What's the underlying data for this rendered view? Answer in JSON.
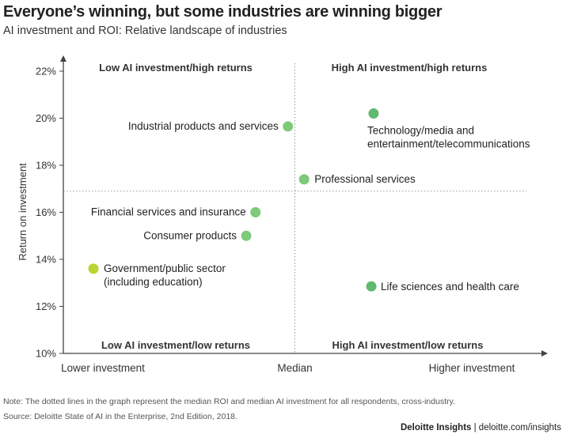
{
  "header": {
    "title": "Everyone’s winning, but some industries are winning bigger",
    "subtitle": "AI investment and ROI: Relative landscape of industries"
  },
  "chart_data": {
    "type": "scatter",
    "ylabel": "Return on investment",
    "ylim": [
      10,
      22
    ],
    "y_ticks": [
      "10%",
      "12%",
      "14%",
      "16%",
      "18%",
      "20%",
      "22%"
    ],
    "x_axis_labels": {
      "low": "Lower investment",
      "mid": "Median",
      "high": "Higher investment"
    },
    "xlim": [
      0,
      100
    ],
    "median_x": 50,
    "median_y": 16.9,
    "quadrants": {
      "top_left": "Low AI investment/high returns",
      "top_right": "High AI investment/high returns",
      "bottom_left": "Low AI investment/low returns",
      "bottom_right": "High AI investment/low returns"
    },
    "points": [
      {
        "label_lines": [
          "Industrial products and services"
        ],
        "x": 48.5,
        "y": 19.65,
        "color": "#7ec97a"
      },
      {
        "label_lines": [
          "Technology/media and",
          "entertainment/telecommunications"
        ],
        "x": 67,
        "y": 20.2,
        "color": "#5fba6f"
      },
      {
        "label_lines": [
          "Professional services"
        ],
        "x": 52,
        "y": 17.4,
        "color": "#7ec97a"
      },
      {
        "label_lines": [
          "Financial services and insurance"
        ],
        "x": 41.5,
        "y": 16.0,
        "color": "#7ec97a"
      },
      {
        "label_lines": [
          "Consumer products"
        ],
        "x": 39.5,
        "y": 15.0,
        "color": "#7ec97a"
      },
      {
        "label_lines": [
          "Government/public sector",
          "(including education)"
        ],
        "x": 6.5,
        "y": 13.6,
        "color": "#b9d531"
      },
      {
        "label_lines": [
          "Life sciences and health care"
        ],
        "x": 66.5,
        "y": 12.85,
        "color": "#5fba6f"
      }
    ]
  },
  "footer": {
    "note": "Note: The dotted lines in the graph represent the median ROI and median AI investment for all respondents, cross-industry.",
    "source": "Source: Deloitte State of AI in the Enterprise, 2nd Edition, 2018.",
    "brand_bold": "Deloitte Insights",
    "brand_rest": " | deloitte.com/insights"
  }
}
